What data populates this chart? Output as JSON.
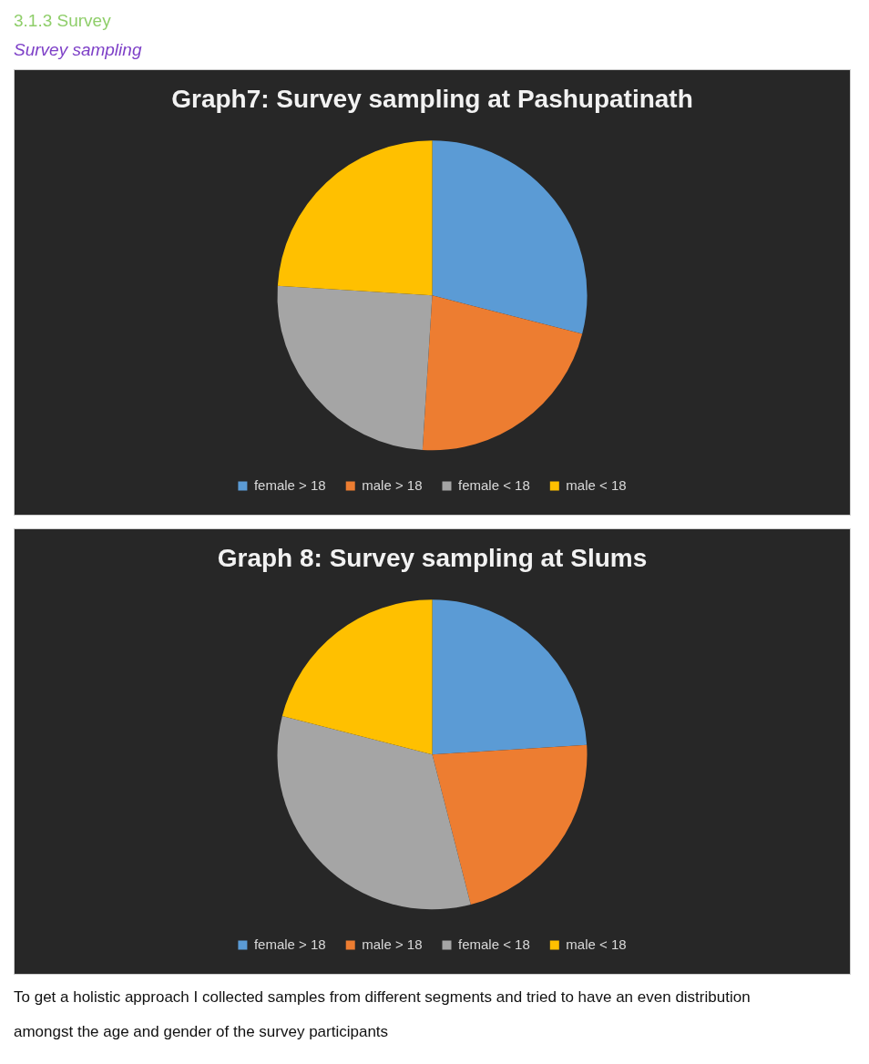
{
  "chart_data": [
    {
      "type": "pie",
      "title": "Graph7: Survey sampling at Pashupatinath",
      "annotations": [
        "3.1.3 Survey",
        "Survey sampling"
      ],
      "categories": [
        "female > 18",
        "male > 18",
        "female < 18",
        "male < 18"
      ],
      "values": [
        29,
        22,
        25,
        24
      ],
      "colors": [
        "#5b9bd5",
        "#ed7d31",
        "#a5a5a5",
        "#ffc000"
      ],
      "legend": "bottom"
    },
    {
      "type": "pie",
      "title": "Graph 8: Survey sampling at Slums",
      "annotations": [
        "To get a holistic approach I collected samples from different segments and tried to have an even distribution amongst the age and gender of the survey participants"
      ],
      "categories": [
        "female > 18",
        "male > 18",
        "female < 18",
        "male < 18"
      ],
      "values": [
        24,
        22,
        33,
        21
      ],
      "colors": [
        "#5b9bd5",
        "#ed7d31",
        "#a5a5a5",
        "#ffc000"
      ],
      "legend": "bottom"
    }
  ]
}
